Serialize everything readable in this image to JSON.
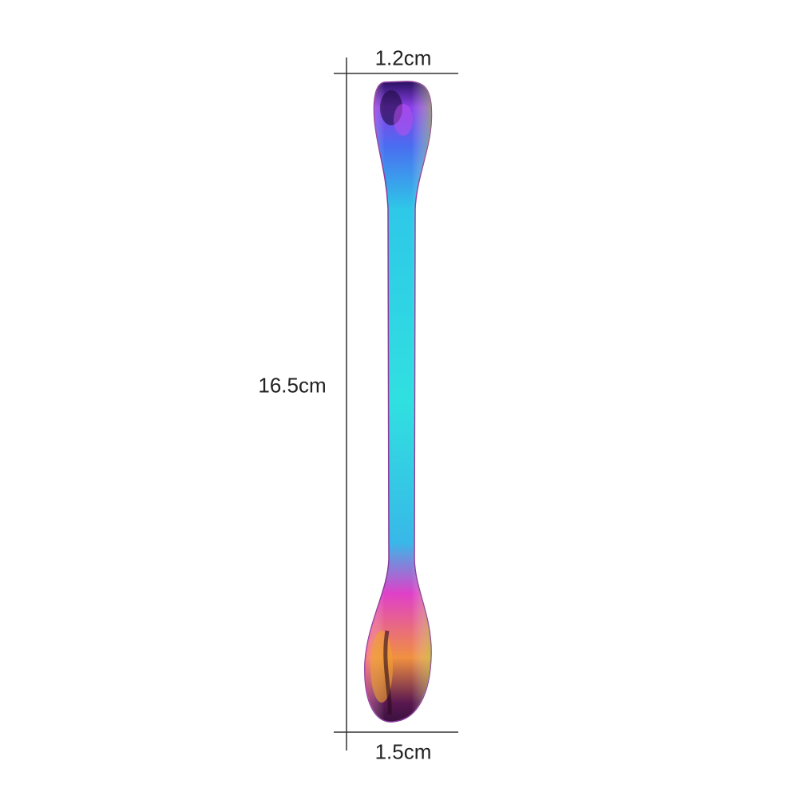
{
  "labels": {
    "top_width": "1.2cm",
    "length": "16.5cm",
    "bottom_width": "1.5cm"
  },
  "product": {
    "subject": "double-ended spoon",
    "finish_colors": [
      "#5a2bd8",
      "#2ee0e8",
      "#e040c8",
      "#f0a030"
    ]
  },
  "colors": {
    "background": "#ffffff",
    "dimension_lines": "#333333",
    "text": "#222222"
  }
}
